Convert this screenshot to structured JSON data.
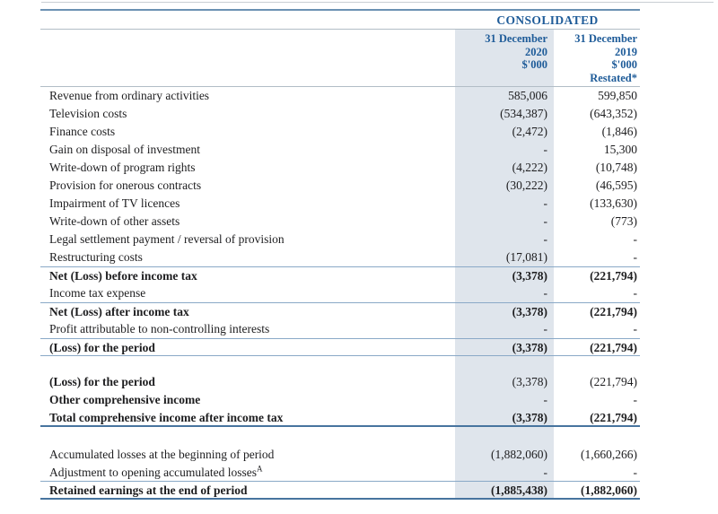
{
  "colors": {
    "accent_blue": "#1f5c99",
    "rule_thin": "#8aa9c7",
    "rule_gray": "#b2bdc6",
    "rule_heavy": "#47749f",
    "rule_top_dark": "#6b91b3",
    "shade": "#dfe5ec",
    "text": "#1d1d1f"
  },
  "table": {
    "group_title": "CONSOLIDATED",
    "header": {
      "columns": [
        {
          "lines": [
            "31 December",
            "2020",
            "$'000"
          ]
        },
        {
          "lines": [
            "31 December",
            "2019",
            "$'000",
            "Restated*"
          ]
        }
      ]
    },
    "rows": [
      {
        "label": "Revenue from ordinary activities",
        "v2020": "585,006",
        "v2019": "599,850"
      },
      {
        "label": "Television costs",
        "v2020": "(534,387)",
        "v2019": "(643,352)"
      },
      {
        "label": "Finance costs",
        "v2020": "(2,472)",
        "v2019": "(1,846)"
      },
      {
        "label": "Gain on disposal of investment",
        "v2020": "-",
        "v2019": "15,300"
      },
      {
        "label": "Write-down of program rights",
        "v2020": "(4,222)",
        "v2019": "(10,748)"
      },
      {
        "label": "Provision for onerous contracts",
        "v2020": "(30,222)",
        "v2019": "(46,595)"
      },
      {
        "label": "Impairment of TV licences",
        "v2020": "-",
        "v2019": "(133,630)"
      },
      {
        "label": "Write-down of other assets",
        "v2020": "-",
        "v2019": "(773)"
      },
      {
        "label": "Legal settlement payment / reversal of provision",
        "v2020": "-",
        "v2019": "-"
      },
      {
        "label": "Restructuring costs",
        "v2020": "(17,081)",
        "v2019": "-"
      },
      {
        "label": "Net (Loss) before income tax",
        "v2020": "(3,378)",
        "v2019": "(221,794)",
        "bold_label": true,
        "bold_values": true,
        "rule_top": true
      },
      {
        "label": "Income tax expense",
        "v2020": "-",
        "v2019": "-"
      },
      {
        "label": "Net (Loss) after income tax",
        "v2020": "(3,378)",
        "v2019": "(221,794)",
        "bold_label": true,
        "bold_values": true,
        "rule_top": true
      },
      {
        "label": "Profit attributable to non-controlling interests",
        "v2020": "-",
        "v2019": "-"
      },
      {
        "label": "(Loss) for the period",
        "v2020": "(3,378)",
        "v2019": "(221,794)",
        "bold_label": true,
        "bold_values": true,
        "rule_top": true,
        "rule_bottom": "thin"
      },
      {
        "type": "spacer",
        "variant": "a"
      },
      {
        "label": "(Loss) for the period",
        "v2020": "(3,378)",
        "v2019": "(221,794)",
        "bold_label": true
      },
      {
        "label": "Other comprehensive income",
        "v2020": "-",
        "v2019": "-",
        "bold_label": true
      },
      {
        "label": "Total comprehensive income after income tax",
        "v2020": "(3,378)",
        "v2019": "(221,794)",
        "bold_label": true,
        "bold_values": true,
        "rule_bottom": "thick"
      },
      {
        "type": "spacer",
        "variant": "b"
      },
      {
        "label": "Accumulated losses at the beginning of period",
        "v2020": "(1,882,060)",
        "v2019": "(1,660,266)"
      },
      {
        "label": "Adjustment to opening accumulated losses",
        "sup": "A",
        "v2020": "-",
        "v2019": "-",
        "rule_bottom": "thin"
      },
      {
        "label": "Retained earnings at the end of period",
        "v2020": "(1,885,438)",
        "v2019": "(1,882,060)",
        "bold_label": true,
        "bold_values": true,
        "rule_bottom": "heavy"
      }
    ]
  }
}
